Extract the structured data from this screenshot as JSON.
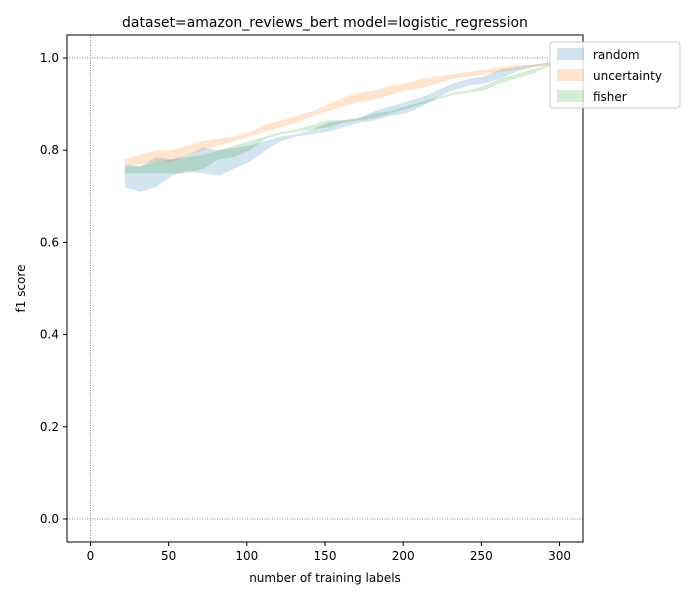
{
  "chart_data": {
    "type": "area",
    "title": "dataset=amazon_reviews_bert model=logistic_regression",
    "xlabel": "number of training labels",
    "ylabel": "f1 score",
    "xlim": [
      -15,
      315
    ],
    "ylim": [
      -0.05,
      1.05
    ],
    "xticks": [
      0,
      50,
      100,
      150,
      200,
      250,
      300
    ],
    "yticks": [
      0.0,
      0.2,
      0.4,
      0.6,
      0.8,
      1.0
    ],
    "xtick_labels": [
      "0",
      "50",
      "100",
      "150",
      "200",
      "250",
      "300"
    ],
    "ytick_labels": [
      "0.0",
      "0.2",
      "0.4",
      "0.6",
      "0.8",
      "1.0"
    ],
    "reference_lines": {
      "x": [
        0
      ],
      "y": [
        0.0,
        1.0
      ]
    },
    "legend_position": "top-right",
    "x": [
      22,
      32,
      42,
      52,
      62,
      72,
      82,
      92,
      102,
      112,
      122,
      132,
      142,
      152,
      162,
      172,
      182,
      192,
      202,
      212,
      222,
      232,
      242,
      252,
      262,
      272,
      282,
      292,
      300
    ],
    "series": [
      {
        "name": "random",
        "color": "#1f77b4",
        "lower": [
          0.72,
          0.71,
          0.72,
          0.745,
          0.755,
          0.75,
          0.745,
          0.76,
          0.775,
          0.8,
          0.82,
          0.83,
          0.835,
          0.84,
          0.85,
          0.86,
          0.865,
          0.875,
          0.88,
          0.895,
          0.915,
          0.93,
          0.94,
          0.945,
          0.955,
          0.97,
          0.98,
          0.985,
          0.99
        ],
        "upper": [
          0.77,
          0.765,
          0.785,
          0.78,
          0.79,
          0.805,
          0.8,
          0.805,
          0.81,
          0.82,
          0.83,
          0.835,
          0.845,
          0.86,
          0.865,
          0.87,
          0.885,
          0.895,
          0.905,
          0.915,
          0.93,
          0.945,
          0.955,
          0.96,
          0.975,
          0.98,
          0.985,
          0.99,
          0.99
        ]
      },
      {
        "name": "uncertainty",
        "color": "#ff7f0e",
        "lower": [
          0.765,
          0.77,
          0.775,
          0.775,
          0.79,
          0.8,
          0.81,
          0.82,
          0.83,
          0.84,
          0.85,
          0.86,
          0.875,
          0.885,
          0.895,
          0.905,
          0.91,
          0.92,
          0.93,
          0.935,
          0.945,
          0.955,
          0.96,
          0.965,
          0.97,
          0.975,
          0.98,
          0.985,
          0.99
        ],
        "upper": [
          0.78,
          0.79,
          0.8,
          0.8,
          0.81,
          0.82,
          0.825,
          0.83,
          0.84,
          0.855,
          0.865,
          0.875,
          0.885,
          0.9,
          0.915,
          0.925,
          0.93,
          0.94,
          0.945,
          0.955,
          0.96,
          0.965,
          0.97,
          0.975,
          0.98,
          0.985,
          0.985,
          0.99,
          0.99
        ]
      },
      {
        "name": "fisher",
        "color": "#2ca02c",
        "lower": [
          0.75,
          0.75,
          0.75,
          0.75,
          0.75,
          0.76,
          0.78,
          0.785,
          0.8,
          0.825,
          0.835,
          0.84,
          0.845,
          0.85,
          0.86,
          0.865,
          0.87,
          0.88,
          0.89,
          0.9,
          0.91,
          0.92,
          0.925,
          0.93,
          0.945,
          0.955,
          0.965,
          0.98,
          0.99
        ],
        "upper": [
          0.765,
          0.765,
          0.775,
          0.78,
          0.785,
          0.79,
          0.8,
          0.81,
          0.82,
          0.83,
          0.84,
          0.845,
          0.855,
          0.865,
          0.865,
          0.87,
          0.88,
          0.885,
          0.895,
          0.905,
          0.915,
          0.925,
          0.93,
          0.94,
          0.955,
          0.965,
          0.975,
          0.985,
          0.99
        ]
      }
    ]
  }
}
